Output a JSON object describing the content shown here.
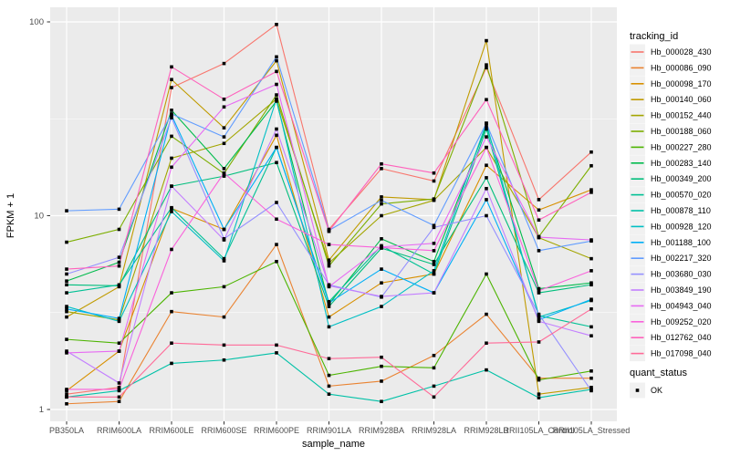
{
  "figure": {
    "y_axis": {
      "label": "FPKM + 1",
      "tick_labels": [
        "100",
        "10",
        "1"
      ]
    },
    "x_axis": {
      "label": "sample_name"
    },
    "legend": {
      "tracking_title": "tracking_id",
      "quant_title": "quant_status",
      "quant_items": [
        {
          "label": "OK",
          "marker": "black-square"
        }
      ]
    },
    "colors": {
      "panel_bg": "#EBEBEB",
      "grid": "#FFFFFF",
      "tick_text": "#4D4D4D",
      "axis_title": "#000000",
      "legend_key_bg": "#F1F1F1",
      "point": "#000000"
    }
  },
  "chart_data": {
    "type": "line",
    "title": "",
    "xlabel": "sample_name",
    "ylabel": "FPKM + 1",
    "y_scale": "log10",
    "ylim": [
      1,
      100
    ],
    "y_ticks": [
      1,
      10,
      100
    ],
    "y_minor_ticks": [
      3.162,
      31.62
    ],
    "grid": true,
    "legend_position": "right",
    "point_marker": {
      "shape": "square",
      "color": "#000000",
      "label": "OK"
    },
    "categories": [
      "PB350LA",
      "RRIM600LA",
      "RRIM600LE",
      "RRIM600SE",
      "RRIM600PE",
      "RRIM901LA",
      "RRIM928BA",
      "RRIM928LA",
      "RRIM928LB",
      "RRII105LA_Control",
      "RRII105LA_Stressed"
    ],
    "series": [
      {
        "name": "Hb_000028_430",
        "color": "#F8766D",
        "values": [
          1.2,
          1.3,
          45.8,
          61,
          97,
          8.5,
          17.5,
          15.1,
          58,
          12.1,
          21.3
        ]
      },
      {
        "name": "Hb_000086_090",
        "color": "#EA8331",
        "values": [
          1.07,
          1.1,
          3.2,
          3.0,
          7.1,
          1.32,
          1.4,
          1.9,
          3.1,
          1.45,
          1.45
        ]
      },
      {
        "name": "Hb_000098_170",
        "color": "#D89000",
        "values": [
          1.25,
          2.0,
          10.9,
          8.5,
          26,
          3.0,
          4.5,
          5.0,
          18.2,
          10.7,
          13.6
        ]
      },
      {
        "name": "Hb_000140_060",
        "color": "#C09B00",
        "values": [
          3.0,
          4.3,
          50.4,
          28.4,
          63,
          5.9,
          12.5,
          12.1,
          80,
          1.2,
          1.3
        ]
      },
      {
        "name": "Hb_000152_440",
        "color": "#A3A500",
        "values": [
          3.2,
          2.9,
          19.8,
          23.6,
          40,
          5.7,
          10.0,
          12.0,
          22.5,
          7.7,
          6.0
        ]
      },
      {
        "name": "Hb_000188_060",
        "color": "#7CAE00",
        "values": [
          7.3,
          8.5,
          25.7,
          16.5,
          42,
          5.5,
          11.5,
          12.2,
          60,
          7.8,
          18.1
        ]
      },
      {
        "name": "Hb_000227_280",
        "color": "#4CB400",
        "values": [
          2.3,
          2.2,
          4.0,
          4.3,
          5.8,
          1.5,
          1.67,
          1.64,
          5.0,
          1.42,
          1.58
        ]
      },
      {
        "name": "Hb_000283_140",
        "color": "#00BB4C",
        "values": [
          4.6,
          5.75,
          35,
          17.5,
          39,
          3.5,
          7.6,
          5.8,
          29,
          4.2,
          4.5
        ]
      },
      {
        "name": "Hb_000349_200",
        "color": "#00BE7C",
        "values": [
          4.4,
          4.35,
          14.2,
          16,
          18.8,
          3.4,
          6.8,
          5.6,
          15.7,
          4.0,
          4.4
        ]
      },
      {
        "name": "Hb_000570_020",
        "color": "#00C094",
        "values": [
          4.0,
          4.4,
          11.0,
          6.0,
          22.5,
          3.6,
          7.0,
          5.0,
          28,
          3.05,
          2.67
        ]
      },
      {
        "name": "Hb_000878_110",
        "color": "#00C1A7",
        "values": [
          1.16,
          1.25,
          1.73,
          1.8,
          1.96,
          1.2,
          1.1,
          1.32,
          1.6,
          1.15,
          1.27
        ]
      },
      {
        "name": "Hb_000928_120",
        "color": "#00BFC4",
        "values": [
          3.4,
          2.85,
          10.5,
          5.85,
          40,
          2.67,
          3.4,
          5.2,
          30,
          3.0,
          3.65
        ]
      },
      {
        "name": "Hb_001188_100",
        "color": "#00AFF6",
        "values": [
          3.3,
          2.95,
          33,
          8.5,
          22.5,
          3.55,
          5.3,
          4.0,
          12.1,
          2.9,
          3.7
        ]
      },
      {
        "name": "Hb_002217_320",
        "color": "#619CFF",
        "values": [
          10.6,
          10.8,
          33.5,
          25.5,
          66,
          8.4,
          12.0,
          8.9,
          30,
          6.6,
          7.4
        ]
      },
      {
        "name": "Hb_003680_030",
        "color": "#9590FF",
        "values": [
          5.0,
          6.1,
          32,
          7.6,
          11.7,
          4.4,
          3.8,
          8.7,
          10.0,
          3.1,
          1.25
        ]
      },
      {
        "name": "Hb_003849_190",
        "color": "#C37FFF",
        "values": [
          2.0,
          1.37,
          14.2,
          7.5,
          28,
          4.35,
          3.83,
          4.0,
          13.8,
          2.85,
          2.4
        ]
      },
      {
        "name": "Hb_004943_040",
        "color": "#E76BF3",
        "values": [
          1.96,
          2.0,
          17.8,
          36.4,
          47.6,
          4.3,
          6.9,
          7.2,
          25.5,
          7.75,
          7.5
        ]
      },
      {
        "name": "Hb_009252_020",
        "color": "#FA62DB",
        "values": [
          1.27,
          1.27,
          6.7,
          16.6,
          9.6,
          7.1,
          6.85,
          6.6,
          22.5,
          4.1,
          5.2
        ]
      },
      {
        "name": "Hb_012762_040",
        "color": "#FF62BC",
        "values": [
          5.3,
          5.5,
          58.6,
          39.9,
          55.5,
          8.3,
          18.5,
          16.6,
          39.7,
          9.5,
          13.2
        ]
      },
      {
        "name": "Hb_017098_040",
        "color": "#FF6A98",
        "values": [
          1.16,
          1.16,
          2.2,
          2.15,
          2.15,
          1.83,
          1.86,
          1.16,
          2.2,
          2.23,
          3.3
        ]
      }
    ]
  }
}
